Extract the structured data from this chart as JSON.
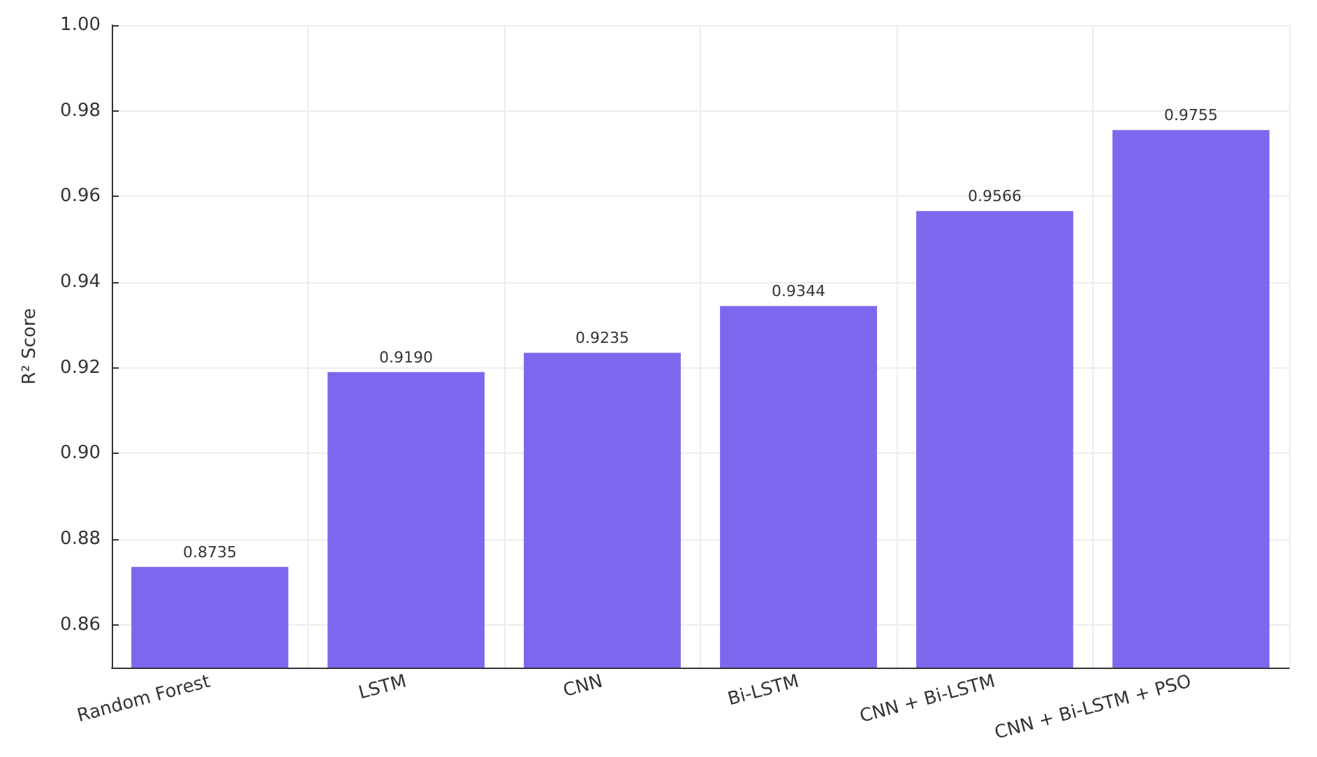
{
  "chart_data": {
    "type": "bar",
    "ylabel": "R² Score",
    "categories": [
      "Random Forest",
      "LSTM",
      "CNN",
      "Bi-LSTM",
      "CNN + Bi-LSTM",
      "CNN + Bi-LSTM + PSO"
    ],
    "values": [
      0.8735,
      0.919,
      0.9235,
      0.9344,
      0.9566,
      0.9755
    ],
    "value_labels": [
      "0.8735",
      "0.9190",
      "0.9235",
      "0.9344",
      "0.9566",
      "0.9755"
    ],
    "color": "#7b68ee",
    "ylim": [
      0.85,
      1.0
    ],
    "yticks": [
      {
        "value": 0.86,
        "label": "0.86"
      },
      {
        "value": 0.88,
        "label": "0.88"
      },
      {
        "value": 0.9,
        "label": "0.90"
      },
      {
        "value": 0.92,
        "label": "0.92"
      },
      {
        "value": 0.94,
        "label": "0.94"
      },
      {
        "value": 0.96,
        "label": "0.96"
      },
      {
        "value": 0.98,
        "label": "0.98"
      },
      {
        "value": 1.0,
        "label": "1.00"
      }
    ],
    "grid": true
  }
}
